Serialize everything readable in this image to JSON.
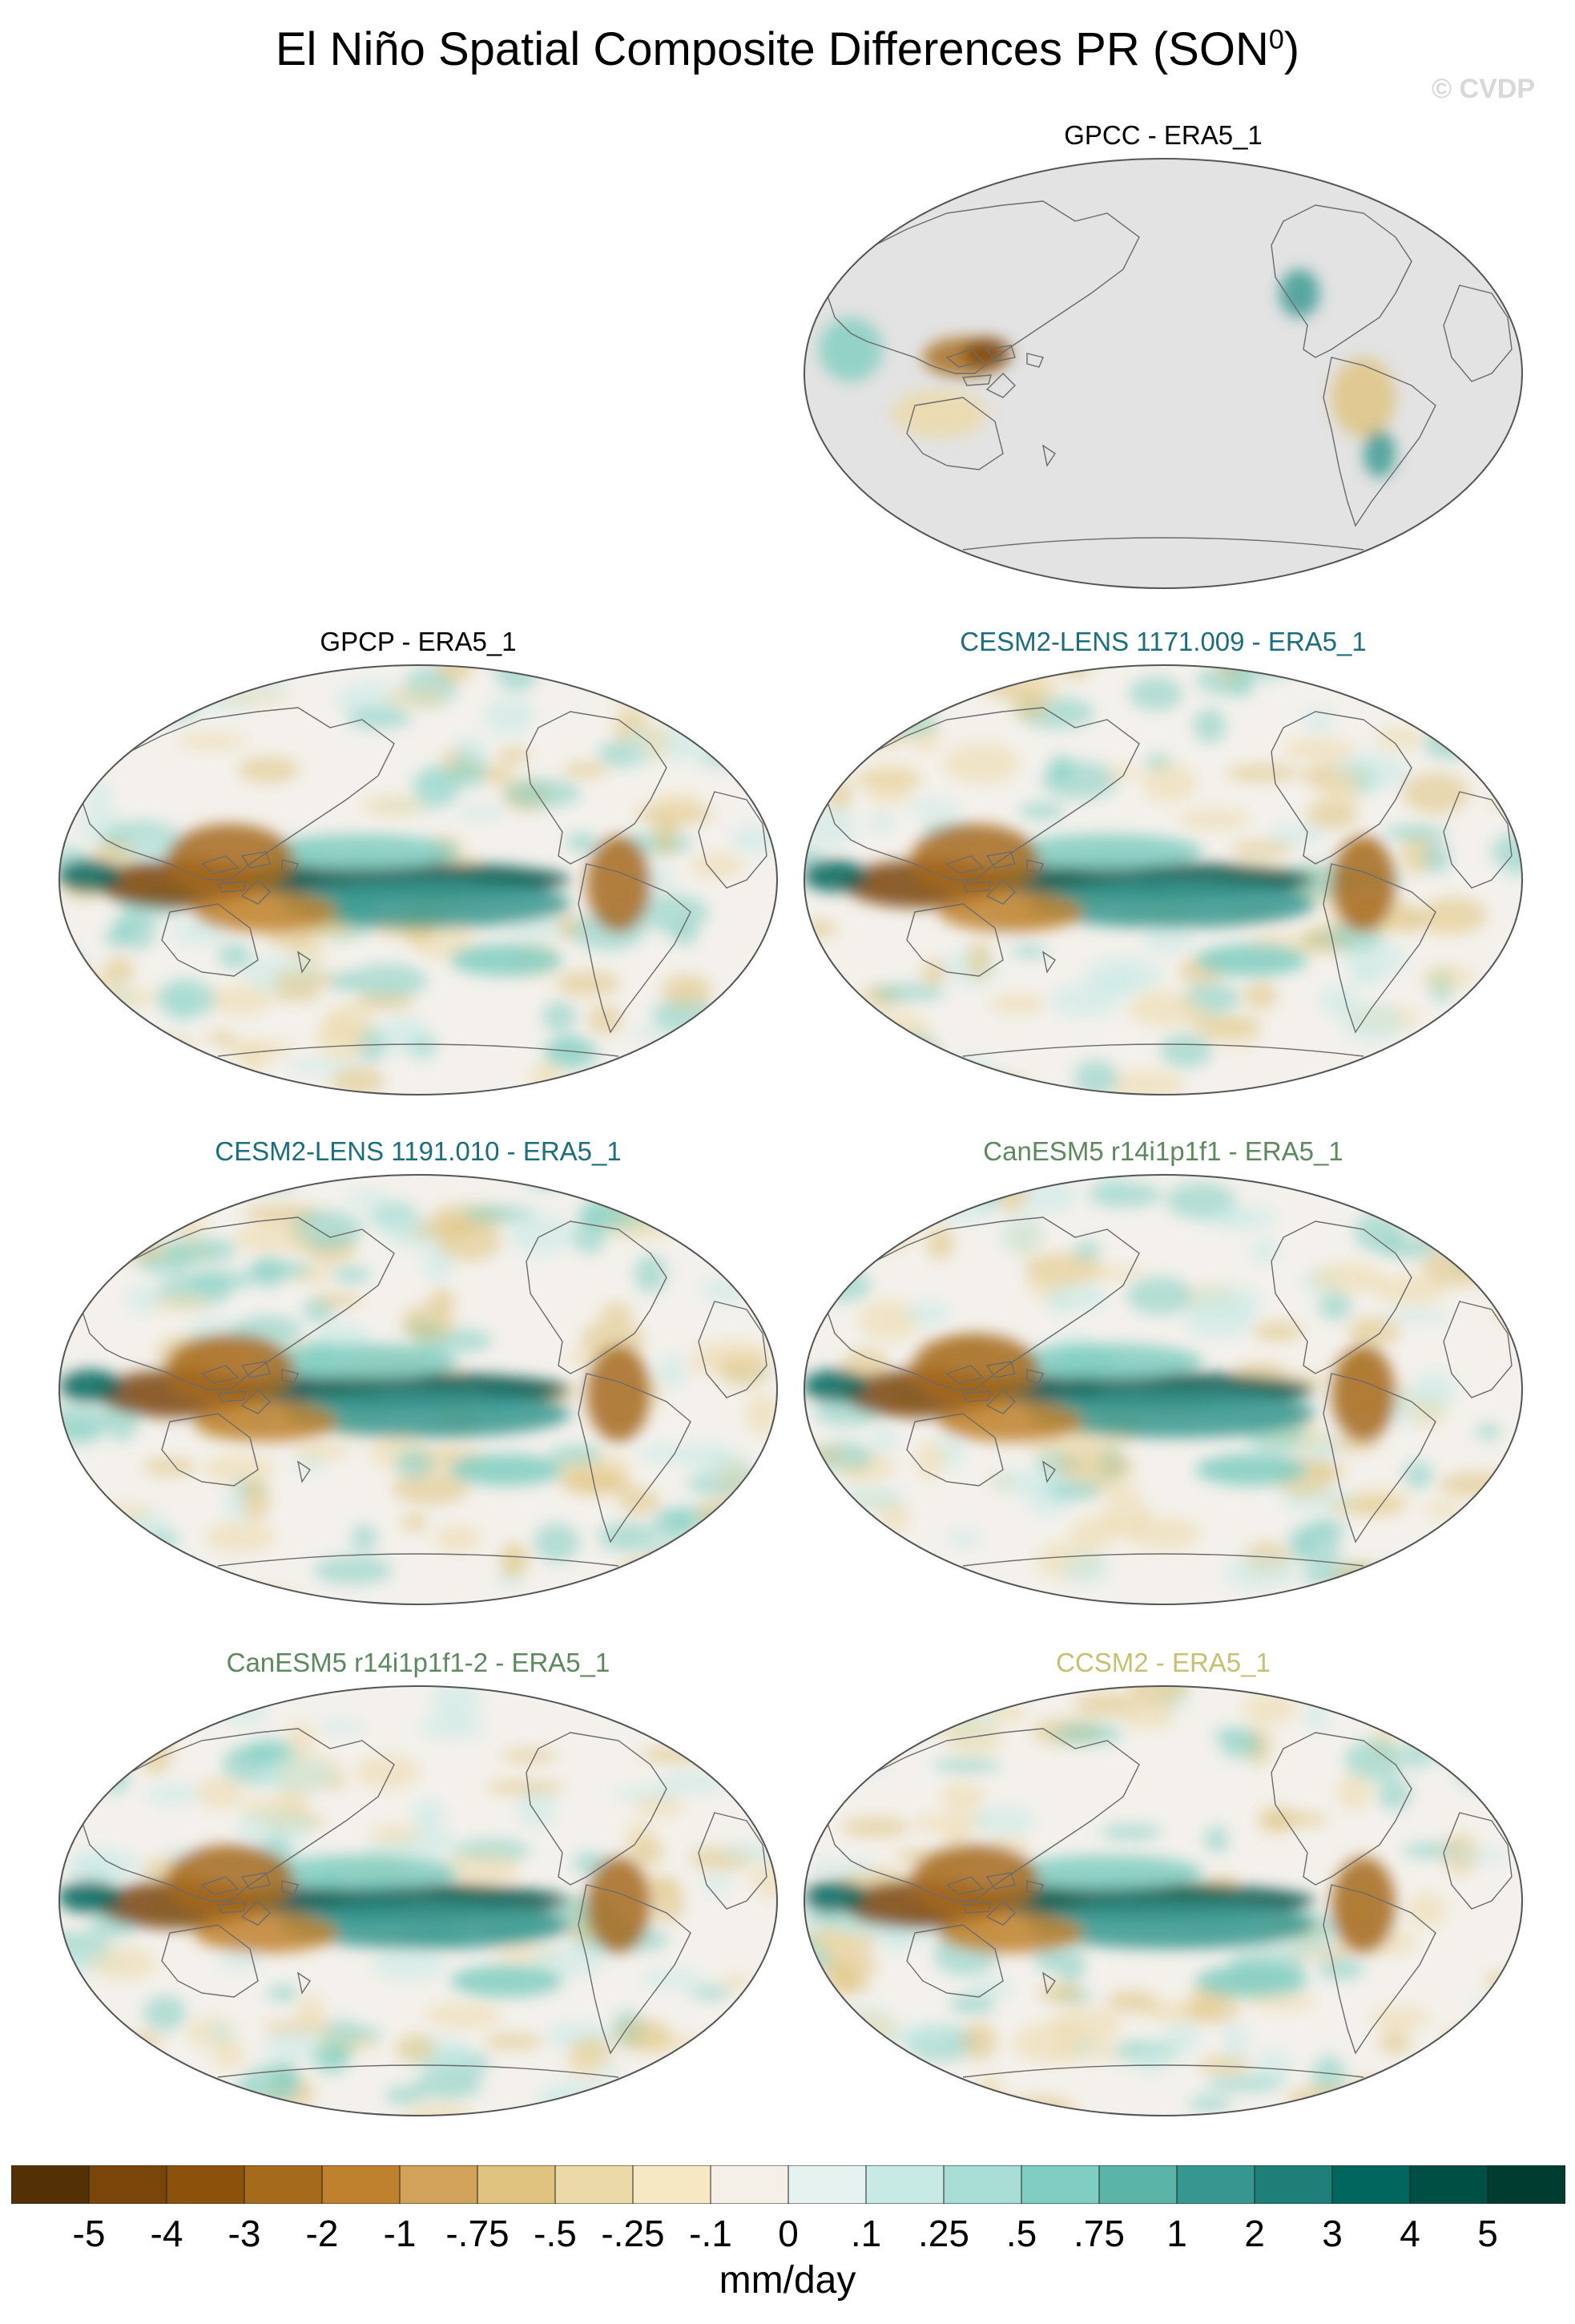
{
  "title": "El Niño Spatial Composite Differences PR (SON",
  "title_superscript": "0",
  "title_close": ")",
  "watermark": "© CVDP",
  "colors": {
    "land_mask": "#e3e3e3",
    "ocean_neutral": "#f4f1ec",
    "title_cesm2": "#1b6e7e",
    "title_canesm5": "#5c8a5e",
    "title_ccsm2": "#c8c070",
    "title_obs": "#000000"
  },
  "panels": [
    {
      "id": "gpcc",
      "title": "GPCC - ERA5_1",
      "title_color": "#000000",
      "masked_ocean": true
    },
    {
      "id": "gpcp",
      "title": "GPCP - ERA5_1",
      "title_color": "#000000",
      "masked_ocean": false
    },
    {
      "id": "cesm2a",
      "title": "CESM2-LENS 1171.009 - ERA5_1",
      "title_color": "#1b6e7e",
      "masked_ocean": false
    },
    {
      "id": "cesm2b",
      "title": "CESM2-LENS 1191.010 - ERA5_1",
      "title_color": "#1b6e7e",
      "masked_ocean": false
    },
    {
      "id": "canesm5a",
      "title": "CanESM5 r14i1p1f1 - ERA5_1",
      "title_color": "#5c8a5e",
      "masked_ocean": false
    },
    {
      "id": "canesm5b",
      "title": "CanESM5 r14i1p1f1-2 - ERA5_1",
      "title_color": "#5c8a5e",
      "masked_ocean": false
    },
    {
      "id": "ccsm2",
      "title": "CCSM2 - ERA5_1",
      "title_color": "#c8c070",
      "masked_ocean": false
    }
  ],
  "colorbar": {
    "units": "mm/day",
    "labels": [
      "-5",
      "-4",
      "-3",
      "-2",
      "-1",
      "-.75",
      "-.5",
      "-.25",
      "-.1",
      "0",
      ".1",
      ".25",
      ".5",
      ".75",
      "1",
      "2",
      "3",
      "4",
      "5"
    ],
    "colors": [
      "#543005",
      "#7a4509",
      "#8c510a",
      "#a66a1c",
      "#bf812d",
      "#d2a25a",
      "#dfc27d",
      "#ecd9a8",
      "#f6e8c3",
      "#f4f0e8",
      "#e6f2ef",
      "#c7eae5",
      "#a8ddd5",
      "#80cdc1",
      "#5ab4a8",
      "#35978f",
      "#1d7f77",
      "#01665e",
      "#004f45",
      "#003c30"
    ]
  },
  "chart_data": {
    "type": "heatmap",
    "title": "El Niño Spatial Composite Differences PR (SON0)",
    "units": "mm/day",
    "projection": "Robinson, Pacific-centered",
    "levels": [
      -5,
      -4,
      -3,
      -2,
      -1,
      -0.75,
      -0.5,
      -0.25,
      -0.1,
      0,
      0.1,
      0.25,
      0.5,
      0.75,
      1,
      2,
      3,
      4,
      5
    ],
    "panels": [
      "GPCC - ERA5_1",
      "GPCP - ERA5_1",
      "CESM2-LENS 1171.009 - ERA5_1",
      "CESM2-LENS 1191.010 - ERA5_1",
      "CanESM5 r14i1p1f1 - ERA5_1",
      "CanESM5 r14i1p1f1-2 - ERA5_1",
      "CCSM2 - ERA5_1"
    ]
  }
}
